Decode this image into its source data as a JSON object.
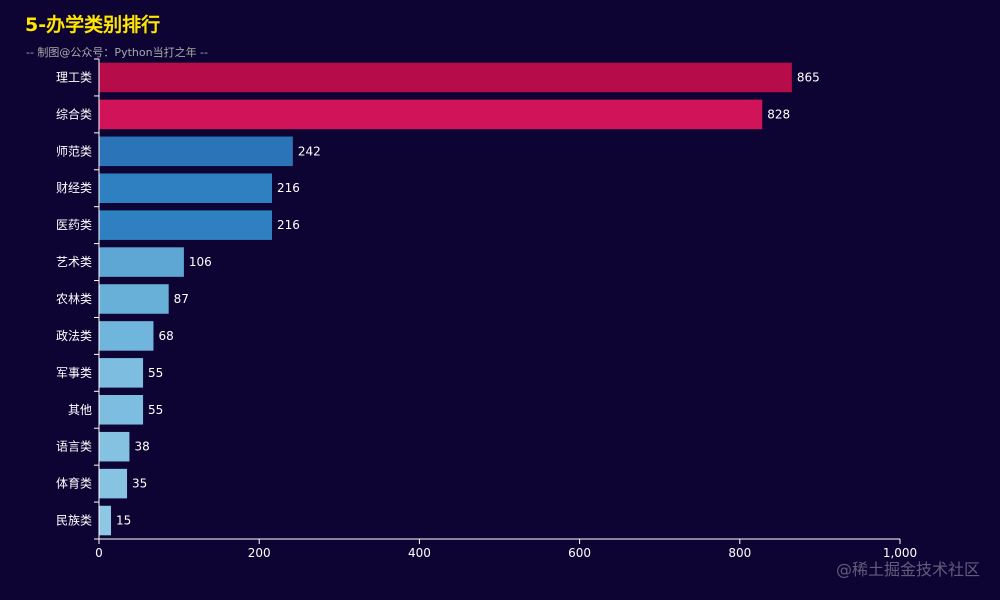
{
  "header": {
    "title": "5-办学类别排行",
    "subtitle": "-- 制图@公众号：Python当打之年 --"
  },
  "watermark": "@稀土掘金技术社区",
  "colors": {
    "background": "#0d0433",
    "title": "#ffe600",
    "axis": "#ffffff"
  },
  "chart_data": {
    "type": "bar",
    "orientation": "horizontal",
    "categories": [
      "理工类",
      "综合类",
      "师范类",
      "财经类",
      "医药类",
      "艺术类",
      "农林类",
      "政法类",
      "军事类",
      "其他",
      "语言类",
      "体育类",
      "民族类"
    ],
    "values": [
      865,
      828,
      242,
      216,
      216,
      106,
      87,
      68,
      55,
      55,
      38,
      35,
      15
    ],
    "colors": [
      "#b70c4a",
      "#d1135a",
      "#2b74b8",
      "#2f80c0",
      "#2f80c0",
      "#5ea6d3",
      "#69b0d9",
      "#70b5dc",
      "#7dbddf",
      "#7dbddf",
      "#85c1e1",
      "#87c3e2",
      "#8ec7e4"
    ],
    "xlim": [
      0,
      1000
    ],
    "xticks": [
      0,
      200,
      400,
      600,
      800,
      1000
    ],
    "xtick_labels": [
      "0",
      "200",
      "400",
      "600",
      "800",
      "1,000"
    ],
    "grid": false,
    "legend": "none"
  }
}
